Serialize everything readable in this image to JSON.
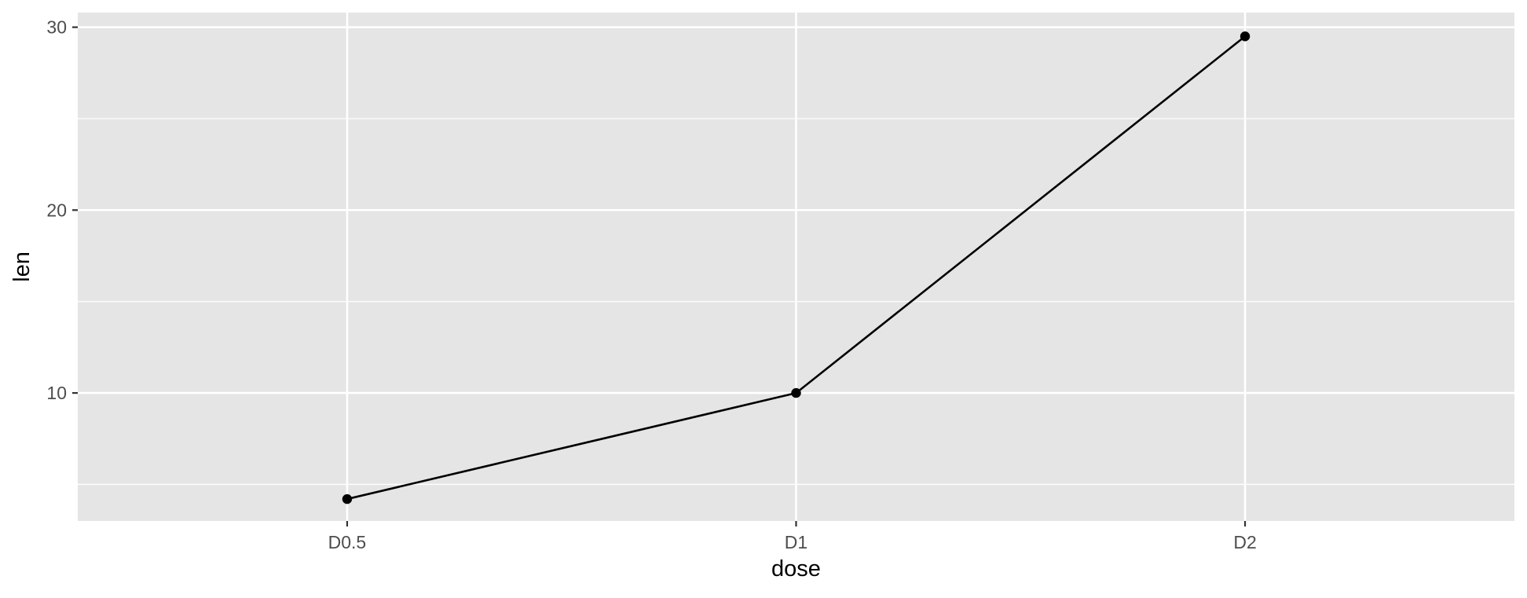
{
  "chart_data": {
    "type": "line",
    "title": "",
    "xlabel": "dose",
    "ylabel": "len",
    "categories": [
      "D0.5",
      "D1",
      "D2"
    ],
    "series": [
      {
        "values": [
          4.2,
          10.0,
          29.5
        ]
      }
    ],
    "ylim": [
      3.0,
      30.8
    ],
    "yticks": [
      10,
      20,
      30
    ],
    "y_minor_ticks": [
      5,
      15,
      25
    ],
    "grid": true,
    "legend": "none",
    "colors": {
      "panel_background": "#e5e5e5",
      "grid": "#ffffff",
      "line": "#000000",
      "point": "#000000",
      "tick_text": "#4d4d4d",
      "axis_title": "#000000",
      "tick_mark": "#333333"
    }
  }
}
